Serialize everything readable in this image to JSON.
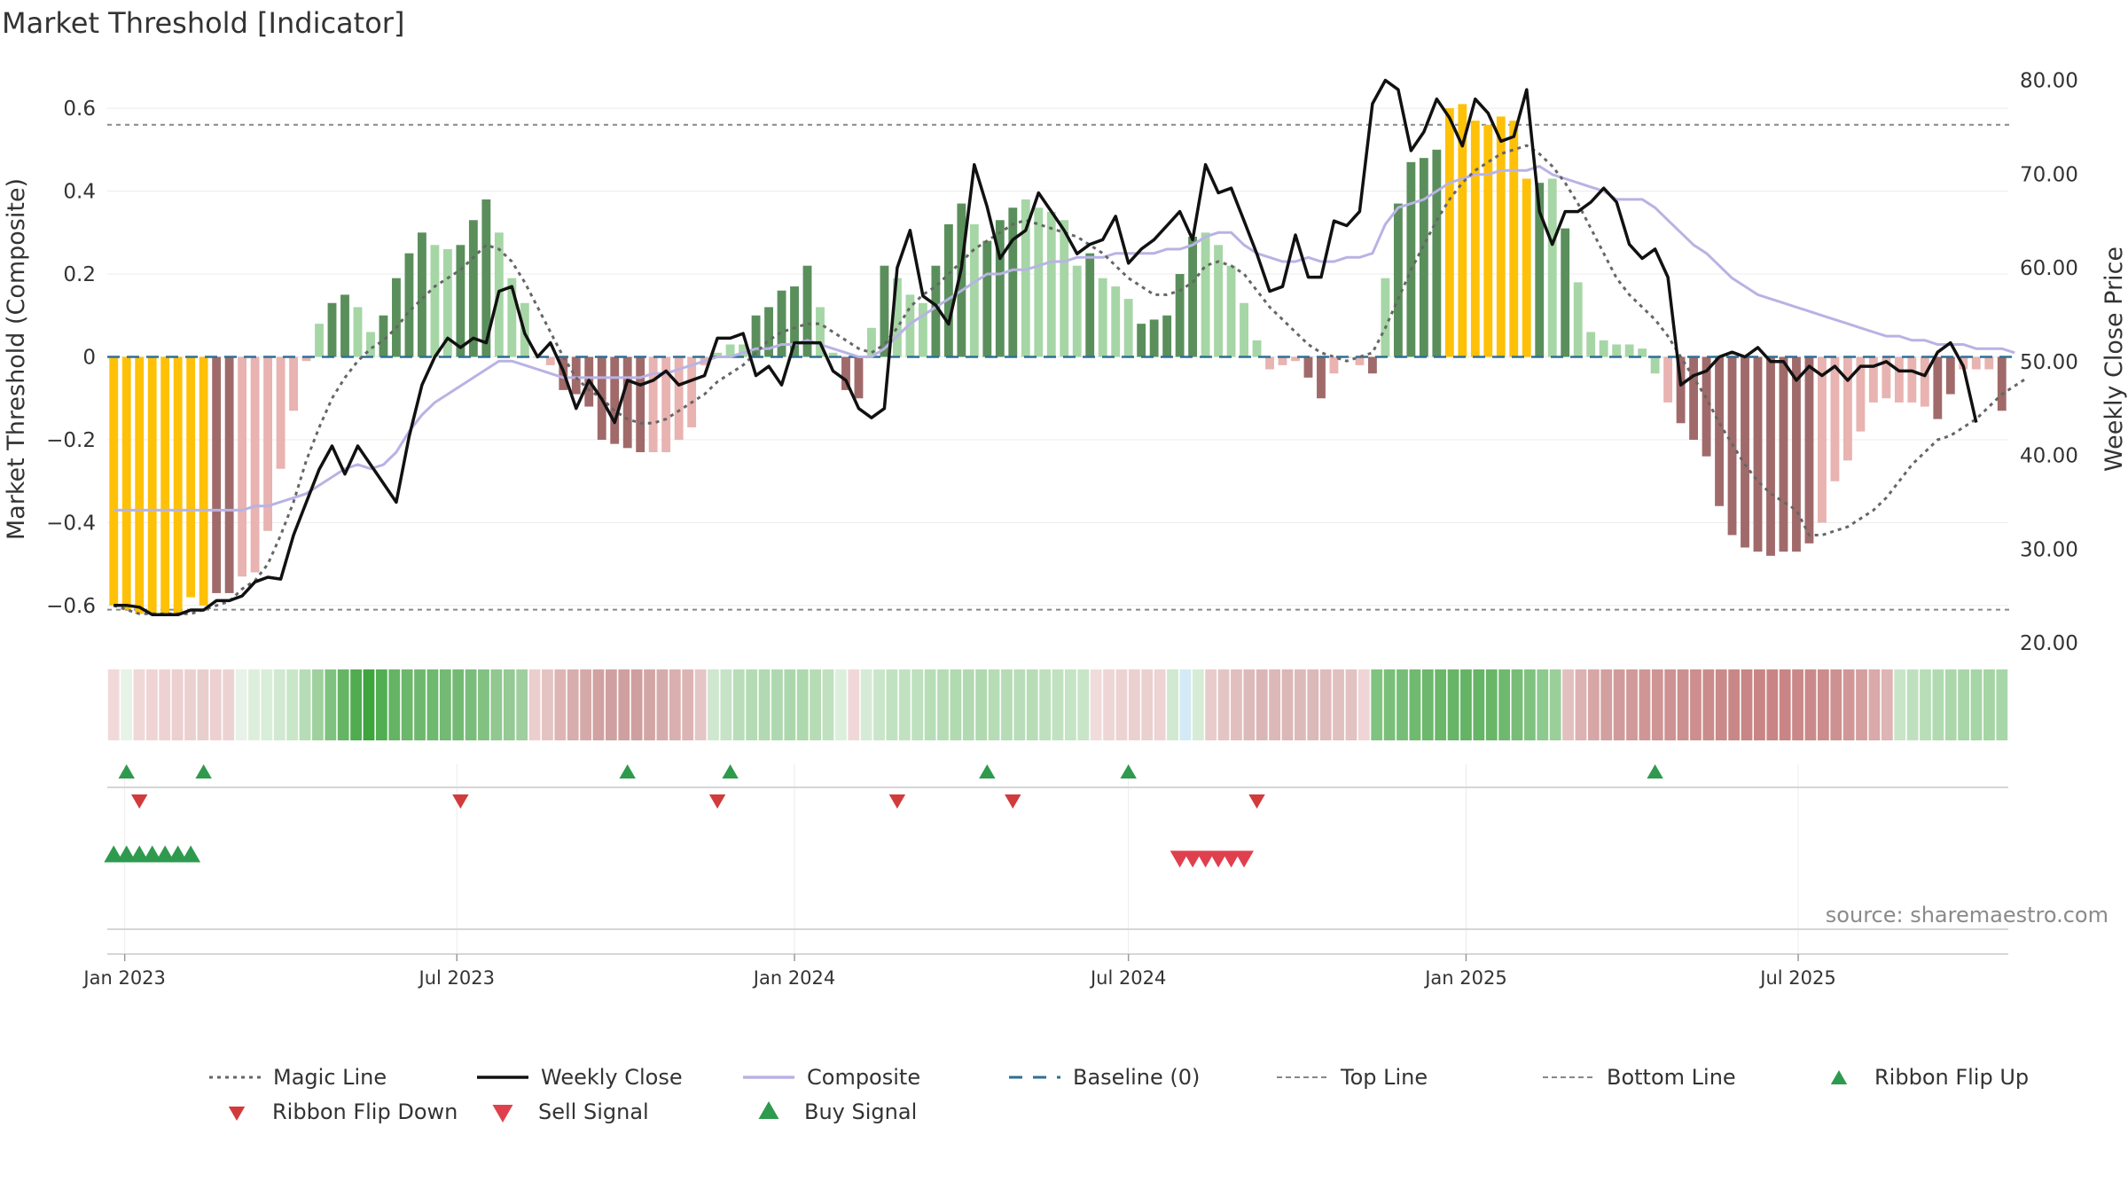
{
  "title": "Market Threshold [Indicator]",
  "source": "source: sharemaestro.com",
  "colors": {
    "hist_dark_green": "#5a8f5c",
    "hist_light_green": "#a6d6a6",
    "hist_gold": "#ffc107",
    "hist_dark_red": "#a16a6a",
    "hist_light_red": "#e8b3b0",
    "weekly_close": "#111111",
    "composite": "#b8b3e4",
    "magic_line": "#666666",
    "baseline": "#2f6f96",
    "threshold_lines": "#888888",
    "ribbon_flip_up": "#2e9a4e",
    "ribbon_flip_down": "#d23b3b",
    "sell_signal": "#e0404e",
    "buy_signal": "#2e9a4e"
  },
  "chart_data": {
    "type": "bar+line",
    "title": "Market Threshold [Indicator]",
    "x_type": "weekly",
    "x_start": "2022-12-26",
    "x_ticks": [
      "Jan 2023",
      "Jul 2023",
      "Jan 2024",
      "Jul 2024",
      "Jan 2025",
      "Jul 2025"
    ],
    "y_left": {
      "label": "Market Threshold (Composite)",
      "ticks": [
        "0.6",
        "0.4",
        "0.2",
        "0",
        "−0.2",
        "−0.4",
        "−0.6"
      ],
      "range": [
        -0.69,
        0.69
      ]
    },
    "y_right": {
      "label": "Weekly Close Price",
      "ticks": [
        "80.00",
        "70.00",
        "60.00",
        "50.00",
        "40.00",
        "30.00",
        "20.00"
      ],
      "range": [
        20,
        81
      ]
    },
    "top_line": 0.56,
    "bottom_line": -0.61,
    "histogram": {
      "values": [
        -0.6,
        -0.61,
        -0.62,
        -0.62,
        -0.62,
        -0.62,
        -0.58,
        -0.6,
        -0.57,
        -0.57,
        -0.53,
        -0.52,
        -0.42,
        -0.27,
        -0.13,
        -0.01,
        0.08,
        0.13,
        0.15,
        0.12,
        0.06,
        0.1,
        0.19,
        0.25,
        0.3,
        0.27,
        0.26,
        0.27,
        0.33,
        0.38,
        0.3,
        0.19,
        0.13,
        0,
        -0.02,
        -0.08,
        -0.09,
        -0.12,
        -0.2,
        -0.21,
        -0.22,
        -0.23,
        -0.23,
        -0.23,
        -0.2,
        -0.17,
        -0.02,
        0.01,
        0.03,
        0.03,
        0.1,
        0.12,
        0.16,
        0.17,
        0.22,
        0.12,
        0.01,
        -0.08,
        -0.1,
        0.07,
        0.22,
        0.19,
        0.15,
        0.13,
        0.22,
        0.32,
        0.37,
        0.32,
        0.28,
        0.33,
        0.36,
        0.38,
        0.36,
        0.35,
        0.33,
        0.22,
        0.25,
        0.19,
        0.17,
        0.14,
        0.08,
        0.09,
        0.1,
        0.2,
        0.29,
        0.3,
        0.27,
        0.22,
        0.13,
        0.04,
        -0.03,
        -0.02,
        -0.01,
        -0.05,
        -0.1,
        -0.04,
        0,
        -0.02,
        -0.04,
        0.19,
        0.37,
        0.47,
        0.48,
        0.5,
        0.6,
        0.61,
        0.57,
        0.56,
        0.58,
        0.57,
        0.43,
        0.42,
        0.43,
        0.31,
        0.18,
        0.06,
        0.04,
        0.03,
        0.03,
        0.02,
        -0.04,
        -0.11,
        -0.16,
        -0.2,
        -0.24,
        -0.36,
        -0.43,
        -0.46,
        -0.47,
        -0.48,
        -0.47,
        -0.47,
        -0.45,
        -0.4,
        -0.3,
        -0.25,
        -0.18,
        -0.11,
        -0.1,
        -0.11,
        -0.11,
        -0.12,
        -0.15,
        -0.09,
        -0.03,
        -0.03,
        -0.03,
        -0.13
      ],
      "color_classes": [
        "gold",
        "gold",
        "gold",
        "gold",
        "gold",
        "gold",
        "gold",
        "gold",
        "dark_red",
        "dark_red",
        "light_red",
        "light_red",
        "light_red",
        "light_red",
        "light_red",
        "light_red",
        "light_green",
        "dark_green",
        "dark_green",
        "light_green",
        "light_green",
        "dark_green",
        "dark_green",
        "dark_green",
        "dark_green",
        "light_green",
        "light_green",
        "dark_green",
        "dark_green",
        "dark_green",
        "light_green",
        "light_green",
        "light_green",
        "light_green",
        "light_red",
        "dark_red",
        "dark_red",
        "dark_red",
        "dark_red",
        "dark_red",
        "dark_red",
        "dark_red",
        "light_red",
        "light_red",
        "light_red",
        "light_red",
        "light_red",
        "light_green",
        "light_green",
        "light_green",
        "dark_green",
        "dark_green",
        "dark_green",
        "dark_green",
        "dark_green",
        "light_green",
        "light_green",
        "dark_red",
        "dark_red",
        "light_green",
        "dark_green",
        "light_green",
        "light_green",
        "light_green",
        "dark_green",
        "dark_green",
        "dark_green",
        "light_green",
        "dark_green",
        "dark_green",
        "dark_green",
        "light_green",
        "light_green",
        "light_green",
        "light_green",
        "light_green",
        "dark_green",
        "light_green",
        "light_green",
        "light_green",
        "dark_green",
        "dark_green",
        "dark_green",
        "dark_green",
        "dark_green",
        "light_green",
        "light_green",
        "light_green",
        "light_green",
        "light_green",
        "light_red",
        "light_red",
        "light_red",
        "dark_red",
        "dark_red",
        "light_red",
        "light_red",
        "light_red",
        "dark_red",
        "light_green",
        "dark_green",
        "dark_green",
        "dark_green",
        "dark_green",
        "gold",
        "gold",
        "gold",
        "gold",
        "gold",
        "gold",
        "gold",
        "dark_green",
        "light_green",
        "dark_green",
        "light_green",
        "light_green",
        "light_green",
        "light_green",
        "light_green",
        "light_green",
        "light_green",
        "light_red",
        "dark_red",
        "dark_red",
        "dark_red",
        "dark_red",
        "dark_red",
        "dark_red",
        "dark_red",
        "dark_red",
        "dark_red",
        "dark_red",
        "dark_red",
        "light_red",
        "light_red",
        "light_red",
        "light_red",
        "light_red",
        "light_red",
        "light_red",
        "light_red",
        "light_red",
        "dark_red",
        "dark_red",
        "light_red",
        "light_red",
        "light_red",
        "dark_red"
      ]
    },
    "weekly_close": [
      24,
      24,
      23.8,
      23,
      23,
      23,
      23.5,
      23.5,
      24.5,
      24.5,
      25,
      26.5,
      27,
      26.8,
      31.5,
      35,
      38.5,
      41,
      38,
      41,
      39,
      37,
      35,
      42,
      47.5,
      50.5,
      52.5,
      51.5,
      52.5,
      52,
      57.5,
      58,
      53,
      50.5,
      52,
      49,
      45,
      48,
      46,
      43.5,
      48,
      47.5,
      48,
      49,
      47.5,
      48,
      48.5,
      52.5,
      52.5,
      53,
      48.5,
      49.5,
      47.5,
      52,
      52,
      52,
      49,
      48,
      45,
      44,
      45,
      60,
      64,
      57,
      56,
      54,
      60,
      71,
      66.5,
      61,
      63,
      64,
      68,
      66,
      64,
      61.5,
      62.5,
      63,
      65.5,
      60.5,
      62,
      63,
      64.5,
      66,
      63,
      71,
      68,
      68.5,
      65,
      61.5,
      57.5,
      58,
      63.5,
      59,
      59,
      65,
      64.5,
      66,
      77.5,
      80,
      79,
      72.5,
      74.5,
      78,
      76,
      73,
      78,
      76.5,
      73.5,
      74,
      79,
      66,
      62.5,
      66,
      66,
      67,
      68.5,
      67,
      62.5,
      61,
      62,
      59,
      47.5,
      48.5,
      49,
      50.5,
      51,
      50.5,
      51.5,
      50,
      50,
      48,
      49.5,
      48.5,
      49.5,
      48,
      49.5,
      49.5,
      50,
      49,
      49,
      48.5,
      51,
      52,
      49.5,
      43.5
    ],
    "composite": [
      -0.37,
      -0.37,
      -0.37,
      -0.37,
      -0.37,
      -0.37,
      -0.37,
      -0.37,
      -0.37,
      -0.37,
      -0.37,
      -0.36,
      -0.36,
      -0.35,
      -0.34,
      -0.33,
      -0.31,
      -0.29,
      -0.27,
      -0.26,
      -0.27,
      -0.26,
      -0.23,
      -0.18,
      -0.14,
      -0.11,
      -0.09,
      -0.07,
      -0.05,
      -0.03,
      -0.01,
      -0.01,
      -0.02,
      -0.03,
      -0.04,
      -0.05,
      -0.05,
      -0.05,
      -0.05,
      -0.05,
      -0.05,
      -0.05,
      -0.04,
      -0.04,
      -0.03,
      -0.02,
      -0.01,
      0.0,
      0.0,
      0.01,
      0.02,
      0.02,
      0.03,
      0.03,
      0.04,
      0.03,
      0.02,
      0.01,
      0.0,
      0.0,
      0.02,
      0.05,
      0.08,
      0.1,
      0.12,
      0.14,
      0.16,
      0.18,
      0.2,
      0.2,
      0.21,
      0.21,
      0.22,
      0.23,
      0.23,
      0.24,
      0.24,
      0.24,
      0.25,
      0.25,
      0.25,
      0.25,
      0.26,
      0.26,
      0.27,
      0.29,
      0.3,
      0.3,
      0.27,
      0.25,
      0.24,
      0.23,
      0.23,
      0.24,
      0.23,
      0.23,
      0.24,
      0.24,
      0.25,
      0.32,
      0.36,
      0.37,
      0.38,
      0.4,
      0.42,
      0.43,
      0.44,
      0.44,
      0.45,
      0.45,
      0.45,
      0.46,
      0.44,
      0.43,
      0.42,
      0.41,
      0.4,
      0.38,
      0.38,
      0.38,
      0.36,
      0.33,
      0.3,
      0.27,
      0.25,
      0.22,
      0.19,
      0.17,
      0.15,
      0.14,
      0.13,
      0.12,
      0.11,
      0.1,
      0.09,
      0.08,
      0.07,
      0.06,
      0.05,
      0.05,
      0.04,
      0.04,
      0.03,
      0.03,
      0.03,
      0.02,
      0.02,
      0.02,
      0.01
    ],
    "magic_line": [
      -0.6,
      -0.61,
      -0.62,
      -0.62,
      -0.62,
      -0.62,
      -0.62,
      -0.61,
      -0.6,
      -0.59,
      -0.56,
      -0.54,
      -0.5,
      -0.43,
      -0.35,
      -0.25,
      -0.17,
      -0.1,
      -0.05,
      -0.01,
      0.02,
      0.04,
      0.07,
      0.11,
      0.14,
      0.17,
      0.19,
      0.21,
      0.24,
      0.27,
      0.26,
      0.23,
      0.18,
      0.12,
      0.06,
      0.0,
      -0.05,
      -0.08,
      -0.1,
      -0.13,
      -0.15,
      -0.16,
      -0.16,
      -0.15,
      -0.13,
      -0.11,
      -0.09,
      -0.06,
      -0.04,
      -0.02,
      0.01,
      0.04,
      0.06,
      0.07,
      0.08,
      0.08,
      0.06,
      0.04,
      0.02,
      0.01,
      0.03,
      0.07,
      0.12,
      0.15,
      0.17,
      0.2,
      0.23,
      0.26,
      0.28,
      0.3,
      0.32,
      0.33,
      0.32,
      0.31,
      0.3,
      0.29,
      0.27,
      0.25,
      0.22,
      0.19,
      0.17,
      0.15,
      0.15,
      0.16,
      0.18,
      0.22,
      0.23,
      0.22,
      0.2,
      0.16,
      0.12,
      0.09,
      0.06,
      0.03,
      0.01,
      0.0,
      -0.01,
      0.0,
      0.01,
      0.07,
      0.14,
      0.21,
      0.27,
      0.33,
      0.38,
      0.42,
      0.45,
      0.47,
      0.49,
      0.5,
      0.51,
      0.49,
      0.46,
      0.42,
      0.37,
      0.31,
      0.25,
      0.19,
      0.15,
      0.12,
      0.09,
      0.05,
      0.0,
      -0.05,
      -0.1,
      -0.16,
      -0.21,
      -0.26,
      -0.3,
      -0.33,
      -0.35,
      -0.37,
      -0.43,
      -0.43,
      -0.42,
      -0.41,
      -0.39,
      -0.37,
      -0.34,
      -0.3,
      -0.26,
      -0.23,
      -0.2,
      -0.19,
      -0.17,
      -0.15,
      -0.12,
      -0.09,
      -0.07,
      -0.05
    ],
    "ribbon_colors": [
      "#f2d9d9",
      "#e8f3e8",
      "#f0d8d8",
      "#f0d4d4",
      "#eed2d2",
      "#eccfcf",
      "#ebd0d0",
      "#e9cece",
      "#edd0d0",
      "#ecd3d3",
      "#e8f2e8",
      "#ddeedd",
      "#d8eed8",
      "#d0e9d0",
      "#c9e6c9",
      "#b7ddb7",
      "#9fd19f",
      "#7fc27f",
      "#66b566",
      "#51ab51",
      "#3ea43e",
      "#53ad53",
      "#65b365",
      "#6bb76b",
      "#6fb76f",
      "#6fb96f",
      "#74b974",
      "#74ba74",
      "#7abd7a",
      "#82c182",
      "#90c890",
      "#95c995",
      "#9fce9f",
      "#ebcfcf",
      "#e4c3c3",
      "#deb5b5",
      "#d8adad",
      "#d6a9a9",
      "#d2a2a2",
      "#cfa0a0",
      "#cfa0a0",
      "#cf9f9f",
      "#d3a6a6",
      "#d6abab",
      "#daafaf",
      "#dcb4b4",
      "#e4c6c6",
      "#cfe7cf",
      "#c6e3c6",
      "#b9ddb9",
      "#b5dbb5",
      "#b2d9b2",
      "#b0d8b0",
      "#acd7ac",
      "#aed8ae",
      "#b6dcb6",
      "#c0e1c0",
      "#dcefdc",
      "#f0d8d8",
      "#d6ebd6",
      "#cae6ca",
      "#c1e2c1",
      "#c1e2c1",
      "#bee0be",
      "#b7ddb7",
      "#b5dcb5",
      "#b1dab1",
      "#b2dab2",
      "#b0d9b0",
      "#b6dcb6",
      "#b6dcb6",
      "#b8ddb8",
      "#b7ddb7",
      "#bee0be",
      "#c1e2c1",
      "#c5e4c5",
      "#c8e5c8",
      "#f1dcdc",
      "#eed6d6",
      "#edd2d2",
      "#ebd0d0",
      "#ebd0d0",
      "#edd3d3",
      "#d0e9d0",
      "#d4eaf4",
      "#d6ecd6",
      "#e8cccc",
      "#e4c5c5",
      "#e1bfbf",
      "#ddbaba",
      "#dbb6b6",
      "#dcb8b8",
      "#dbb7b7",
      "#ddbaba",
      "#dcb9b9",
      "#dfbcbc",
      "#e1c0c0",
      "#e2c2c2",
      "#efd5d5",
      "#80c380",
      "#79bf79",
      "#77bd77",
      "#70ba70",
      "#6cb86c",
      "#6ab76a",
      "#67b567",
      "#65b465",
      "#66b466",
      "#69b669",
      "#6fb96f",
      "#77bd77",
      "#7fc27f",
      "#8ec98e",
      "#9acf9a",
      "#e2c0c0",
      "#dcb2b2",
      "#d7a6a6",
      "#d49f9f",
      "#d29b9b",
      "#d19999",
      "#d09696",
      "#cf9494",
      "#ce9292",
      "#cd9090",
      "#cc8e8e",
      "#cb8c8c",
      "#ca8a8a",
      "#c98787",
      "#c98686",
      "#c98585",
      "#c98585",
      "#c98585",
      "#ca8888",
      "#cb8a8a",
      "#cc8c8c",
      "#ce9191",
      "#d19797",
      "#d59f9f",
      "#daa9a9",
      "#dfb4b4",
      "#c8e5c8",
      "#bfe0bf",
      "#b8ddb8",
      "#b1dab1",
      "#abd7ab",
      "#a8d6a8",
      "#a6d5a6",
      "#a5d4a5",
      "#a8d6a8"
    ],
    "ribbon_flip_up_idx": [
      1,
      7,
      40,
      48,
      68,
      79,
      120
    ],
    "ribbon_flip_down_idx": [
      2,
      27,
      47,
      61,
      70,
      89
    ],
    "buy_signal_idx": [
      0,
      1,
      2,
      3,
      4,
      5,
      6
    ],
    "sell_signal_idx": [
      83,
      84,
      85,
      86,
      87,
      88
    ]
  },
  "legend": [
    {
      "label": "Magic Line"
    },
    {
      "label": "Weekly Close"
    },
    {
      "label": "Composite"
    },
    {
      "label": "Baseline (0)"
    },
    {
      "label": "Top Line"
    },
    {
      "label": "Bottom Line"
    },
    {
      "label": "Ribbon Flip Up"
    },
    {
      "label": "Ribbon Flip Down"
    },
    {
      "label": "Sell Signal"
    },
    {
      "label": "Buy Signal"
    }
  ]
}
